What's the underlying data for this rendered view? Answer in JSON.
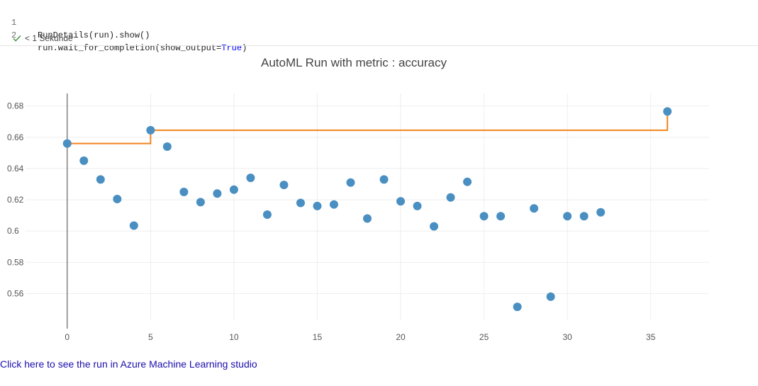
{
  "code_cell": {
    "lines": [
      {
        "number": "1",
        "code": "RunDetails(run).show()"
      },
      {
        "number": "2",
        "code_prefix": "run.wait_for_completion(show_output=",
        "code_keyword": "True",
        "code_suffix": ")"
      }
    ],
    "execution_status": "< 1 Sekunde"
  },
  "chart_data": {
    "type": "scatter",
    "title": "AutoML Run with metric : accuracy",
    "xlim": [
      -2.5,
      38.5
    ],
    "ylim": [
      0.543,
      0.688
    ],
    "xticks": [
      0,
      5,
      10,
      15,
      20,
      25,
      30,
      35
    ],
    "yticks": [
      0.56,
      0.58,
      0.6,
      0.62,
      0.64,
      0.66,
      0.68
    ],
    "ytick_labels": [
      "0.56",
      "0.58",
      "0.6",
      "0.62",
      "0.64",
      "0.66",
      "0.68"
    ],
    "grid": true,
    "colors": {
      "points": "#4a8fc2",
      "best_line": "#f0841f",
      "zero_line": "#444444",
      "grid": "#eeeeee"
    },
    "points": [
      {
        "x": 0,
        "y": 0.656
      },
      {
        "x": 1,
        "y": 0.645
      },
      {
        "x": 2,
        "y": 0.633
      },
      {
        "x": 3,
        "y": 0.6205
      },
      {
        "x": 4,
        "y": 0.6035
      },
      {
        "x": 5,
        "y": 0.6645
      },
      {
        "x": 6,
        "y": 0.654
      },
      {
        "x": 7,
        "y": 0.625
      },
      {
        "x": 8,
        "y": 0.6185
      },
      {
        "x": 9,
        "y": 0.624
      },
      {
        "x": 10,
        "y": 0.6265
      },
      {
        "x": 11,
        "y": 0.634
      },
      {
        "x": 12,
        "y": 0.6105
      },
      {
        "x": 13,
        "y": 0.6295
      },
      {
        "x": 14,
        "y": 0.618
      },
      {
        "x": 15,
        "y": 0.616
      },
      {
        "x": 16,
        "y": 0.617
      },
      {
        "x": 17,
        "y": 0.631
      },
      {
        "x": 18,
        "y": 0.608
      },
      {
        "x": 19,
        "y": 0.633
      },
      {
        "x": 20,
        "y": 0.619
      },
      {
        "x": 21,
        "y": 0.616
      },
      {
        "x": 22,
        "y": 0.603
      },
      {
        "x": 23,
        "y": 0.6215
      },
      {
        "x": 24,
        "y": 0.6315
      },
      {
        "x": 25,
        "y": 0.6095
      },
      {
        "x": 26,
        "y": 0.6095
      },
      {
        "x": 27,
        "y": 0.5515
      },
      {
        "x": 28,
        "y": 0.6145
      },
      {
        "x": 29,
        "y": 0.558
      },
      {
        "x": 30,
        "y": 0.6095
      },
      {
        "x": 31,
        "y": 0.6095
      },
      {
        "x": 32,
        "y": 0.612
      },
      {
        "x": 36,
        "y": 0.6765
      }
    ],
    "best_so_far": [
      {
        "x": 0,
        "y": 0.656
      },
      {
        "x": 5,
        "y": 0.6645
      },
      {
        "x": 36,
        "y": 0.6765
      }
    ]
  },
  "link": {
    "text": "Click here to see the run in Azure Machine Learning studio"
  }
}
